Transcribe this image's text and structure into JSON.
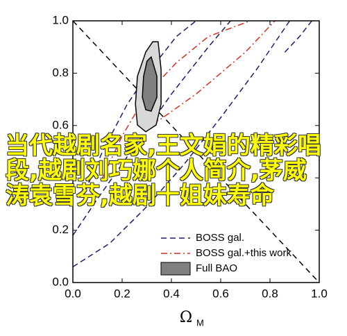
{
  "chart_data": {
    "type": "contour",
    "x_label": "Ω",
    "x_label_sub": "M",
    "xlim": [
      0,
      1
    ],
    "ylim": [
      0,
      1
    ],
    "xticks": [
      {
        "value": 0,
        "label": "0.0"
      },
      {
        "value": 0.2,
        "label": "0.2"
      },
      {
        "value": 0.4,
        "label": "0.4"
      },
      {
        "value": 0.6,
        "label": "0.6"
      },
      {
        "value": 0.8,
        "label": "0.8"
      },
      {
        "value": 1,
        "label": "1.0"
      }
    ],
    "yticks": [
      {
        "value": 0,
        "label": "0.0"
      },
      {
        "value": 0.2,
        "label": "0.2"
      },
      {
        "value": 0.4,
        "label": "0.4"
      },
      {
        "value": 0.6,
        "label": "0.6"
      },
      {
        "value": 0.8,
        "label": "0.8"
      },
      {
        "value": 1,
        "label": "1.0"
      }
    ],
    "flat_line": {
      "x": [
        0,
        1
      ],
      "y": [
        1,
        0
      ],
      "color": "#000000"
    },
    "series": [
      {
        "name": "BOSS gal.",
        "color": "#1a1a6e",
        "style": "dash",
        "curves": [
          {
            "x": [
              0,
              0.15,
              0.3,
              0.45,
              0.6,
              0.75,
              0.88
            ],
            "y": [
              0.06,
              0.15,
              0.29,
              0.45,
              0.63,
              0.82,
              1
            ]
          },
          {
            "x": [
              0.05,
              0.12,
              0.22,
              0.32,
              0.42,
              0.5
            ],
            "y": [
              0.35,
              0.5,
              0.68,
              0.82,
              0.94,
              1
            ]
          },
          {
            "x": [
              0,
              0.1,
              0.25,
              0.4,
              0.55,
              0.64
            ],
            "y": [
              0.18,
              0.32,
              0.52,
              0.72,
              0.9,
              1
            ]
          },
          {
            "x": [
              0.86,
              0.92,
              0.97
            ],
            "y": [
              0.88,
              0.94,
              1
            ]
          }
        ]
      },
      {
        "name": "BOSS gal.+this work",
        "color": "#d03020",
        "style": "dashdot",
        "curves": [
          {
            "x": [
              0.12,
              0.2,
              0.3,
              0.42,
              0.55,
              0.72
            ],
            "y": [
              0.4,
              0.56,
              0.72,
              0.84,
              0.94,
              1
            ]
          },
          {
            "x": [
              0.27,
              0.35,
              0.5,
              0.7,
              0.82
            ],
            "y": [
              0.6,
              0.62,
              0.72,
              0.88,
              1
            ]
          }
        ]
      },
      {
        "name": "Full BAO",
        "color": "#a0a0a0",
        "style": "fill",
        "curves": [
          {
            "x": [
              0.346,
              0.358,
              0.358,
              0.338,
              0.296,
              0.262,
              0.254,
              0.262,
              0.296,
              0.324
            ],
            "y": [
              0.92,
              0.814,
              0.682,
              0.602,
              0.576,
              0.602,
              0.682,
              0.788,
              0.881,
              0.92
            ],
            "color": "#d8d8d8"
          },
          {
            "x": [
              0.318,
              0.341,
              0.341,
              0.318,
              0.296,
              0.282,
              0.287,
              0.301
            ],
            "y": [
              0.862,
              0.788,
              0.708,
              0.655,
              0.66,
              0.708,
              0.788,
              0.846
            ],
            "color": "#808080"
          }
        ]
      }
    ],
    "legend": "lower right",
    "overlay_text": [
      "当代越剧名家,王文娟的精彩唱",
      "段,越剧刘巧娜个人简介,茅威",
      "涛袁雪芬,越剧十姐妹寿命"
    ]
  }
}
